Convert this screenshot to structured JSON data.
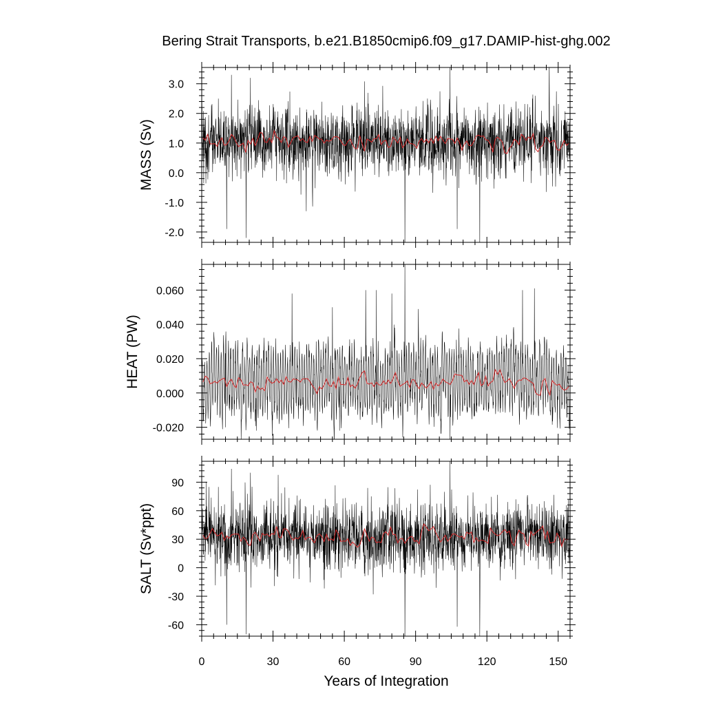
{
  "title": "Bering Strait Transports, b.e21.B1850cmip6.f09_g17.DAMIP-hist-ghg.002",
  "xlabel": "Years of Integration",
  "colors": {
    "monthly": "#000000",
    "annual": "#d62728"
  },
  "chart_data": [
    {
      "type": "line",
      "ylabel": "MASS (Sv)",
      "xlim": [
        0,
        155
      ],
      "ylim": [
        -2.35,
        3.55
      ],
      "xticks": [
        0,
        30,
        60,
        90,
        120,
        150
      ],
      "xtick_labels": [
        "0",
        "30",
        "60",
        "90",
        "120",
        "150"
      ],
      "yticks": [
        -2.0,
        -1.0,
        0.0,
        1.0,
        2.0,
        3.0
      ],
      "ytick_labels": [
        "-2.0",
        "-1.0",
        "0.0",
        "1.0",
        "2.0",
        "3.0"
      ],
      "series": [
        {
          "style": "monthly",
          "gen": {
            "mean": 1.05,
            "std": 0.55,
            "seasonal": 0.25,
            "drift": 0.08
          },
          "peaks": [
            [
              12.5,
              3.3
            ],
            [
              20.5,
              3.2
            ],
            [
              104.5,
              3.6
            ],
            [
              7,
              2.5
            ]
          ],
          "troughs": [
            [
              10.5,
              -1.9
            ],
            [
              18.7,
              -2.2
            ],
            [
              85.5,
              -2.5
            ],
            [
              117,
              -2.5
            ],
            [
              107.5,
              -1.9
            ],
            [
              44,
              -1.3
            ]
          ]
        },
        {
          "style": "annual",
          "gen": {
            "mean": 1.05,
            "std": 0.14
          }
        }
      ]
    },
    {
      "type": "line",
      "ylabel": "HEAT (PW)",
      "xlim": [
        0,
        155
      ],
      "ylim": [
        -0.027,
        0.075
      ],
      "xticks": [
        0,
        30,
        60,
        90,
        120,
        150
      ],
      "xtick_labels": [
        "0",
        "30",
        "60",
        "90",
        "120",
        "150"
      ],
      "yticks": [
        -0.02,
        0.0,
        0.02,
        0.04,
        0.06
      ],
      "ytick_labels": [
        "-0.020",
        "0.000",
        "0.020",
        "0.040",
        "0.060"
      ],
      "series": [
        {
          "style": "monthly",
          "gen": {
            "mean": 0.006,
            "std": 0.004,
            "seasonal": 0.017,
            "drift": 0.004
          },
          "peaks": [
            [
              85.5,
              0.075
            ],
            [
              73.5,
              0.06
            ],
            [
              80,
              0.058
            ],
            [
              69,
              0.06
            ],
            [
              135,
              0.06
            ],
            [
              140,
              0.061
            ],
            [
              38,
              0.058
            ],
            [
              55,
              0.05
            ]
          ],
          "troughs": [
            [
              104.5,
              -0.027
            ],
            [
              58,
              -0.022
            ],
            [
              10,
              -0.02
            ],
            [
              23,
              -0.022
            ]
          ]
        },
        {
          "style": "annual",
          "gen": {
            "mean": 0.006,
            "std": 0.0025
          }
        }
      ]
    },
    {
      "type": "line",
      "ylabel": "SALT (Sv*ppt)",
      "xlim": [
        0,
        155
      ],
      "ylim": [
        -72,
        112
      ],
      "xticks": [
        0,
        30,
        60,
        90,
        120,
        150
      ],
      "xtick_labels": [
        "0",
        "30",
        "60",
        "90",
        "120",
        "150"
      ],
      "yticks": [
        -60,
        -30,
        0,
        30,
        60,
        90
      ],
      "ytick_labels": [
        "-60",
        "-30",
        "0",
        "30",
        "60",
        "90"
      ],
      "series": [
        {
          "style": "monthly",
          "gen": {
            "mean": 33,
            "std": 17,
            "seasonal": 8,
            "drift": 2.5
          },
          "peaks": [
            [
              12.5,
              104
            ],
            [
              20.5,
              100
            ],
            [
              104.5,
              112
            ],
            [
              7,
              85
            ],
            [
              3,
              85
            ]
          ],
          "troughs": [
            [
              10.5,
              -60
            ],
            [
              18.7,
              -70
            ],
            [
              85.5,
              -72
            ],
            [
              117,
              -72
            ],
            [
              107.5,
              -62
            ]
          ]
        },
        {
          "style": "annual",
          "gen": {
            "mean": 33,
            "std": 4.5
          }
        }
      ]
    }
  ]
}
